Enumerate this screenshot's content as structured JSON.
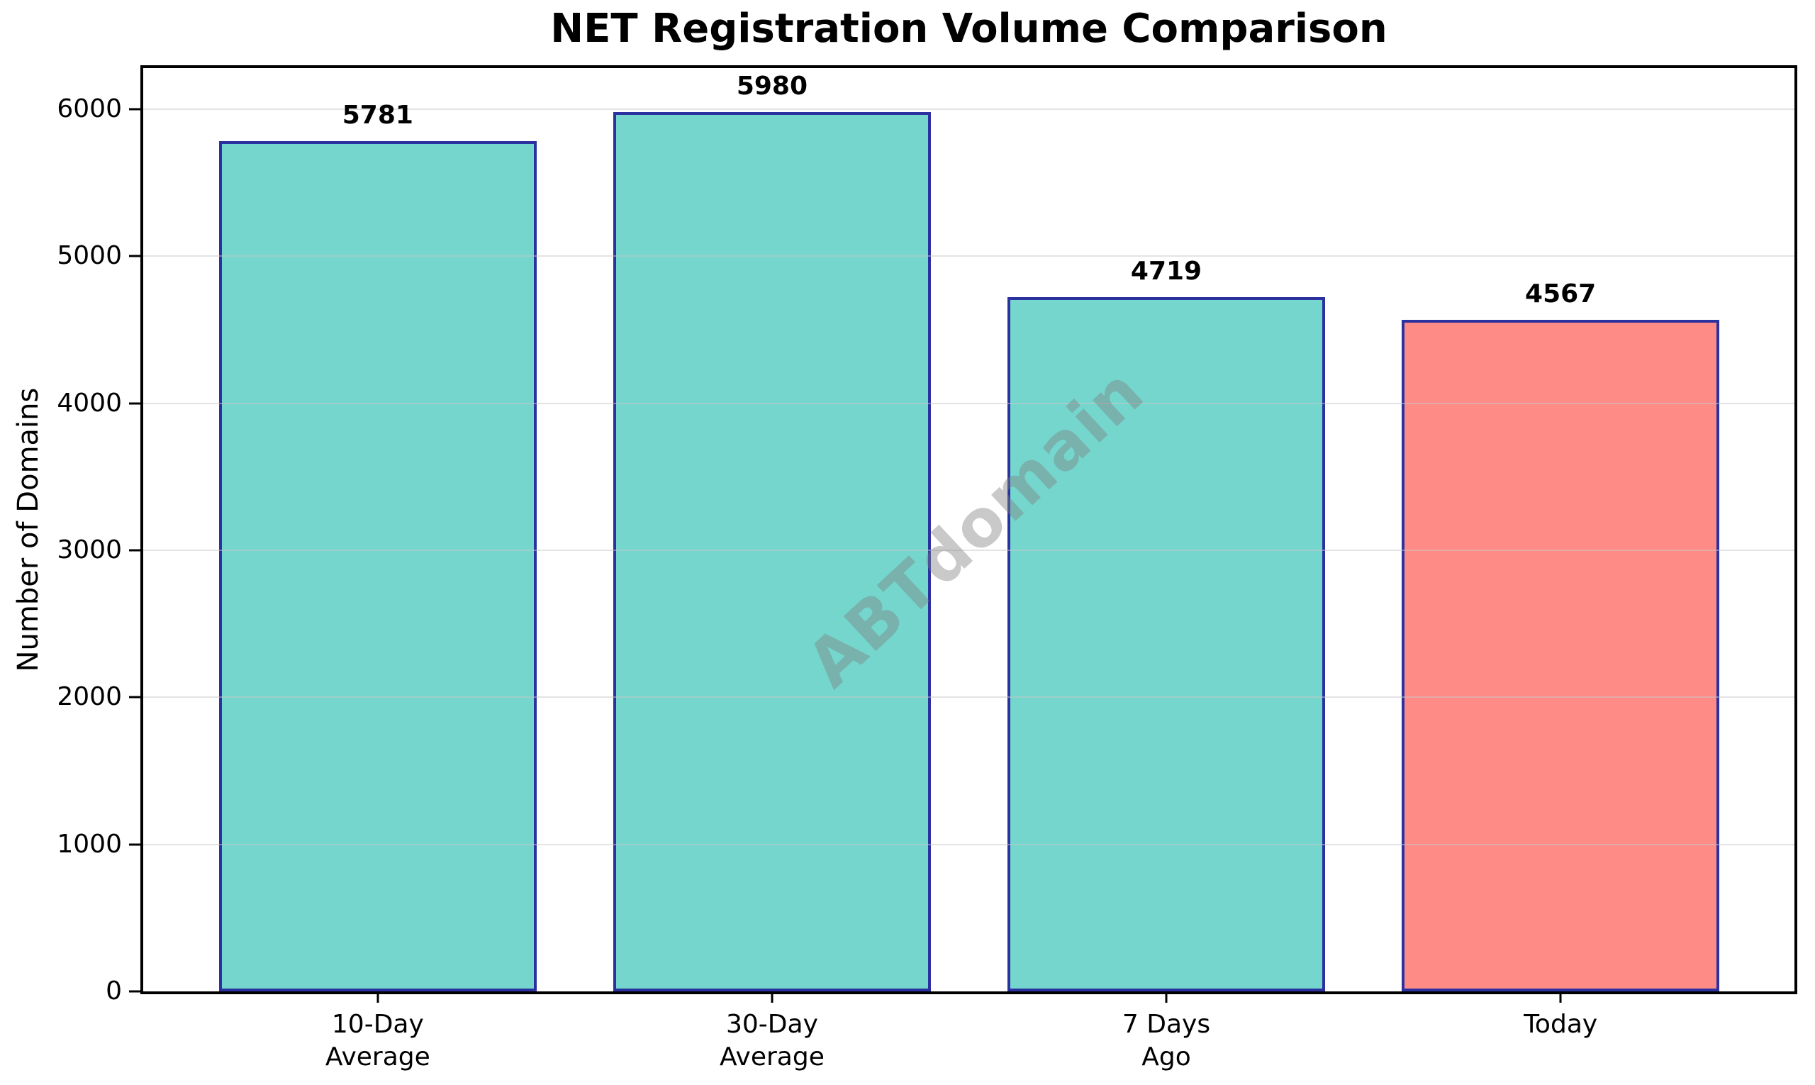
{
  "chart_data": {
    "type": "bar",
    "title": "NET Registration Volume Comparison",
    "ylabel": "Number of Domains",
    "xlabel": "",
    "categories": [
      [
        "10-Day",
        "Average"
      ],
      [
        "30-Day",
        "Average"
      ],
      [
        "7 Days",
        "Ago"
      ],
      [
        "Today"
      ]
    ],
    "values": [
      5781,
      5980,
      4719,
      4567
    ],
    "value_labels": [
      "5781",
      "5980",
      "4719",
      "4567"
    ],
    "yticks": [
      0,
      1000,
      2000,
      3000,
      4000,
      5000,
      6000
    ],
    "ylim": [
      0,
      6279
    ],
    "grid": "horizontal",
    "legend": "none",
    "bar_colors": [
      "#74D6CD",
      "#74D6CD",
      "#74D6CD",
      "#FF8B87"
    ],
    "bar_edge_color": "#2B32A0",
    "grid_color": "#C8C8C8",
    "axis_color": "#000000",
    "background_color": "#FFFFFF",
    "watermark": "ABTdomain",
    "watermark_color": "#808080"
  }
}
